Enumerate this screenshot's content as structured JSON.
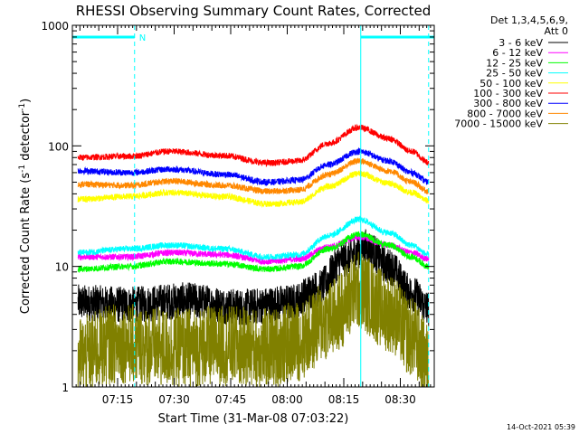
{
  "chart_data": {
    "type": "line",
    "title": "RHESSI Observing Summary Count Rates, Corrected",
    "ylabel_main": "Corrected Count Rate (s",
    "ylabel_sup1": "-1",
    "ylabel_mid": " detector",
    "ylabel_sup2": "-1",
    "ylabel_end": ")",
    "xlabel": "Start Time (31-Mar-08 07:03:22)",
    "timestamp": "14-Oct-2021 05:39",
    "legend_header": [
      "Det 1,3,4,5,6,9,",
      "Att 0"
    ],
    "y_scale": "log",
    "ylim": [
      1,
      1000
    ],
    "xlim_min": [
      0,
      96
    ],
    "y_ticks": [
      {
        "value": 1,
        "label": "1"
      },
      {
        "value": 10,
        "label": "10"
      },
      {
        "value": 100,
        "label": "100"
      },
      {
        "value": 1000,
        "label": "1000"
      }
    ],
    "x_ticks": [
      {
        "value": 12,
        "label": "07:15"
      },
      {
        "value": 27,
        "label": "07:30"
      },
      {
        "value": 42,
        "label": "07:45"
      },
      {
        "value": 57,
        "label": "08:00"
      },
      {
        "value": 72,
        "label": "08:15"
      },
      {
        "value": 87,
        "label": "08:30"
      }
    ],
    "series": [
      {
        "name": "3 - 6 keV",
        "color": "#000000",
        "keypoints": [
          [
            1.5,
            5
          ],
          [
            15,
            4.8
          ],
          [
            30,
            5.2
          ],
          [
            45,
            4.6
          ],
          [
            58,
            5
          ],
          [
            65,
            6.5
          ],
          [
            72,
            11.5
          ],
          [
            78,
            14.5
          ],
          [
            84,
            10
          ],
          [
            90,
            6
          ],
          [
            94.5,
            4.5
          ]
        ]
      },
      {
        "name": "6 - 12 keV",
        "color": "#ff00ff",
        "keypoints": [
          [
            1.5,
            12
          ],
          [
            15,
            12
          ],
          [
            26,
            13
          ],
          [
            40,
            12.5
          ],
          [
            52,
            11
          ],
          [
            60,
            11.5
          ],
          [
            68,
            14.5
          ],
          [
            76,
            17.5
          ],
          [
            84,
            15
          ],
          [
            90,
            13
          ],
          [
            94.5,
            11.5
          ]
        ]
      },
      {
        "name": "12 - 25 keV",
        "color": "#00ff00",
        "keypoints": [
          [
            1.5,
            9.5
          ],
          [
            15,
            10
          ],
          [
            26,
            11
          ],
          [
            40,
            10.5
          ],
          [
            52,
            9.5
          ],
          [
            60,
            10
          ],
          [
            68,
            14
          ],
          [
            76,
            18.5
          ],
          [
            84,
            15
          ],
          [
            90,
            12
          ],
          [
            94.5,
            10
          ]
        ]
      },
      {
        "name": "25 - 50 keV",
        "color": "#00ffff",
        "keypoints": [
          [
            1.5,
            13
          ],
          [
            15,
            14
          ],
          [
            26,
            15
          ],
          [
            40,
            14
          ],
          [
            52,
            12
          ],
          [
            60,
            12.5
          ],
          [
            68,
            18
          ],
          [
            76,
            24.5
          ],
          [
            84,
            19
          ],
          [
            90,
            15
          ],
          [
            94.5,
            12.5
          ]
        ]
      },
      {
        "name": "50 - 100 keV",
        "color": "#ffff00",
        "keypoints": [
          [
            1.5,
            36
          ],
          [
            15,
            38
          ],
          [
            26,
            41
          ],
          [
            40,
            38
          ],
          [
            52,
            33
          ],
          [
            60,
            34
          ],
          [
            68,
            46
          ],
          [
            76,
            59
          ],
          [
            84,
            49
          ],
          [
            90,
            41
          ],
          [
            94.5,
            35
          ]
        ]
      },
      {
        "name": "100 - 300 keV",
        "color": "#ff0000",
        "keypoints": [
          [
            1.5,
            80
          ],
          [
            15,
            82
          ],
          [
            26,
            90
          ],
          [
            40,
            83
          ],
          [
            52,
            72
          ],
          [
            60,
            75
          ],
          [
            68,
            105
          ],
          [
            76,
            142
          ],
          [
            84,
            115
          ],
          [
            90,
            90
          ],
          [
            94.5,
            73
          ]
        ]
      },
      {
        "name": "300 - 800 keV",
        "color": "#0000ff",
        "keypoints": [
          [
            1.5,
            62
          ],
          [
            15,
            60
          ],
          [
            26,
            64
          ],
          [
            40,
            58
          ],
          [
            52,
            50
          ],
          [
            60,
            52
          ],
          [
            68,
            70
          ],
          [
            76,
            90
          ],
          [
            84,
            75
          ],
          [
            90,
            60
          ],
          [
            94.5,
            50
          ]
        ]
      },
      {
        "name": "800 - 7000 keV",
        "color": "#ff8800",
        "keypoints": [
          [
            1.5,
            48
          ],
          [
            15,
            47
          ],
          [
            26,
            51
          ],
          [
            40,
            47
          ],
          [
            52,
            42
          ],
          [
            60,
            43
          ],
          [
            68,
            58
          ],
          [
            76,
            75
          ],
          [
            84,
            62
          ],
          [
            90,
            50
          ],
          [
            94.5,
            42
          ]
        ]
      },
      {
        "name": "7000 - 15000 keV",
        "color": "#808000",
        "keypoints": [
          [
            1.5,
            1.8
          ],
          [
            12,
            2.3
          ],
          [
            26,
            2.1
          ],
          [
            40,
            2.2
          ],
          [
            52,
            2.1
          ],
          [
            60,
            2.4
          ],
          [
            68,
            3.6
          ],
          [
            76,
            6.3
          ],
          [
            84,
            4.2
          ],
          [
            90,
            2.6
          ],
          [
            94.5,
            1.6
          ]
        ]
      }
    ],
    "spectrum_keys": [
      "3 - 6 keV",
      "6 - 12 keV",
      "12 - 25 keV",
      "25 - 50 keV",
      "50 - 100 keV",
      "100 - 300 keV",
      "300 - 800 keV",
      "800 - 7000 keV",
      "7000 - 15000 keV"
    ],
    "flags": [
      {
        "label": "N",
        "x_start": 0,
        "x_end": 16.5
      },
      {
        "label": "",
        "x_start": 76.5,
        "x_end": 96
      }
    ],
    "vertical_lines": [
      0,
      16.5,
      76.5,
      94.5
    ],
    "grid": false
  }
}
